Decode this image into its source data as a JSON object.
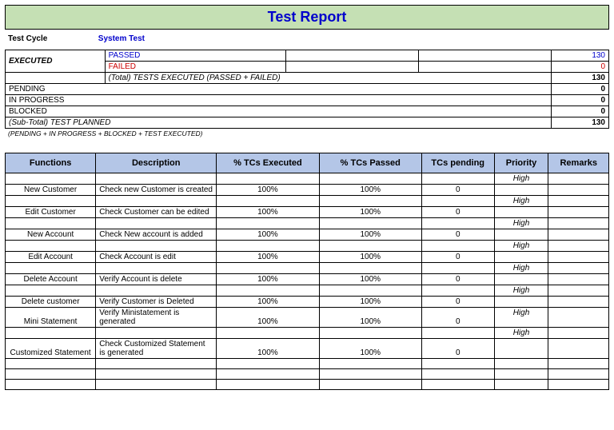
{
  "title": "Test Report",
  "cycle": {
    "label": "Test Cycle",
    "value": "System Test"
  },
  "summary": {
    "executed_label": "EXECUTED",
    "passed_label": "PASSED",
    "passed_value": "130",
    "failed_label": "FAILED",
    "failed_value": "0",
    "total_exec_label": "(Total) TESTS EXECUTED (PASSED + FAILED)",
    "total_exec_value": "130",
    "pending_label": "PENDING",
    "pending_value": "0",
    "inprogress_label": "IN PROGRESS",
    "inprogress_value": "0",
    "blocked_label": "BLOCKED",
    "blocked_value": "0",
    "subtotal_label": "(Sub-Total) TEST PLANNED",
    "subtotal_value": "130",
    "note": "(PENDING + IN PROGRESS + BLOCKED + TEST EXECUTED)"
  },
  "headers": {
    "functions": "Functions",
    "description": "Description",
    "executed": "% TCs Executed",
    "passed": "% TCs Passed",
    "pending": "TCs pending",
    "priority": "Priority",
    "remarks": "Remarks"
  },
  "rows": [
    {
      "fn": "New Customer",
      "desc": "Check new Customer is created",
      "exec": "100%",
      "pass": "100%",
      "pend": "0",
      "prio": "High",
      "tall": true
    },
    {
      "fn": "Edit Customer",
      "desc": "Check Customer can be edited",
      "exec": "100%",
      "pass": "100%",
      "pend": "0",
      "prio": "High",
      "tall": true
    },
    {
      "fn": "New Account",
      "desc": "Check New account is added",
      "exec": "100%",
      "pass": "100%",
      "pend": "0",
      "prio": "High",
      "tall": true
    },
    {
      "fn": "Edit Account",
      "desc": "Check Account is edit",
      "exec": "100%",
      "pass": "100%",
      "pend": "0",
      "prio": "High",
      "tall": true
    },
    {
      "fn": "Delete Account",
      "desc": "Verify Account is delete",
      "exec": "100%",
      "pass": "100%",
      "pend": "0",
      "prio": "High",
      "tall": true
    },
    {
      "fn": "Delete customer",
      "desc": "Verify Customer is Deleted",
      "exec": "100%",
      "pass": "100%",
      "pend": "0",
      "prio": "High",
      "tall": true
    },
    {
      "fn": "Mini Statement",
      "desc": "Verify Ministatement is generated",
      "exec": "100%",
      "pass": "100%",
      "pend": "0",
      "prio": "High",
      "tall": false
    },
    {
      "fn": "Customized Statement",
      "desc": "Check Customized Statement is generated",
      "exec": "100%",
      "pass": "100%",
      "pend": "0",
      "prio": "High",
      "tall": true
    },
    {
      "fn": "",
      "desc": "",
      "exec": "",
      "pass": "",
      "pend": "",
      "prio": "",
      "tall": false
    },
    {
      "fn": "",
      "desc": "",
      "exec": "",
      "pass": "",
      "pend": "",
      "prio": "",
      "tall": false
    },
    {
      "fn": "",
      "desc": "",
      "exec": "",
      "pass": "",
      "pend": "",
      "prio": "",
      "tall": false
    }
  ],
  "colors": {
    "header_bg": "#c5e0b4",
    "th_bg": "#b4c6e7",
    "link_blue": "#0000cc",
    "fail_red": "#cc0000"
  },
  "col_widths": {
    "summary": [
      "16.5%",
      "30%",
      "22%",
      "22%",
      "9.5%"
    ],
    "detail": [
      "15%",
      "20%",
      "17%",
      "17%",
      "12%",
      "9%",
      "10%"
    ]
  }
}
